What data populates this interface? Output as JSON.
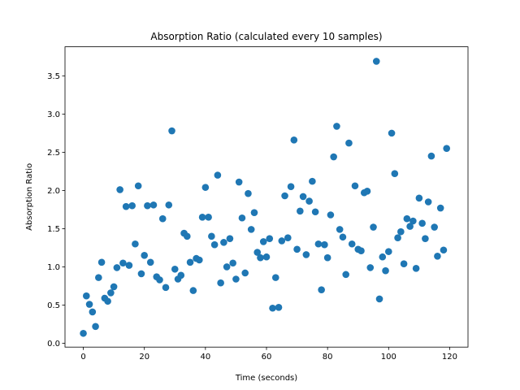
{
  "chart_data": {
    "type": "scatter",
    "title": "Absorption Ratio (calculated every 10 samples)",
    "xlabel": "Time (seconds)",
    "ylabel": "Absorption Ratio",
    "xlim": [
      -6,
      126
    ],
    "ylim": [
      -0.05,
      3.88
    ],
    "xticks": [
      0,
      20,
      40,
      60,
      80,
      100,
      120
    ],
    "yticks": [
      0.0,
      0.5,
      1.0,
      1.5,
      2.0,
      2.5,
      3.0,
      3.5
    ],
    "ytick_labels": [
      "0.0",
      "0.5",
      "1.0",
      "1.5",
      "2.0",
      "2.5",
      "3.0",
      "3.5"
    ],
    "xtick_labels": [
      "0",
      "20",
      "40",
      "60",
      "80",
      "100",
      "120"
    ],
    "grid": false,
    "marker_color": "#1f77b4",
    "x": [
      0,
      1,
      2,
      3,
      4,
      5,
      6,
      7,
      8,
      9,
      10,
      11,
      12,
      13,
      14,
      15,
      16,
      17,
      18,
      19,
      20,
      21,
      22,
      23,
      24,
      25,
      26,
      27,
      28,
      29,
      30,
      31,
      32,
      33,
      34,
      35,
      36,
      37,
      38,
      39,
      40,
      41,
      42,
      43,
      44,
      45,
      46,
      47,
      48,
      49,
      50,
      51,
      52,
      53,
      54,
      55,
      56,
      57,
      58,
      59,
      60,
      61,
      62,
      63,
      64,
      65,
      66,
      67,
      68,
      69,
      70,
      71,
      72,
      73,
      74,
      75,
      76,
      77,
      78,
      79,
      80,
      81,
      82,
      83,
      84,
      85,
      86,
      87,
      88,
      89,
      90,
      91,
      92,
      93,
      94,
      95,
      96,
      97,
      98,
      99,
      100,
      101,
      102,
      103,
      104,
      105,
      106,
      107,
      108,
      109,
      110,
      111,
      112,
      113,
      114,
      115,
      116,
      117,
      118,
      119
    ],
    "y": [
      0.13,
      0.62,
      0.51,
      0.41,
      0.22,
      0.86,
      1.06,
      0.59,
      0.55,
      0.66,
      0.74,
      0.99,
      2.01,
      1.05,
      1.79,
      1.02,
      1.8,
      1.3,
      2.06,
      0.91,
      1.15,
      1.8,
      1.06,
      1.81,
      0.87,
      0.83,
      1.63,
      0.73,
      1.81,
      2.78,
      0.97,
      0.84,
      0.89,
      1.44,
      1.4,
      1.06,
      0.69,
      1.11,
      1.09,
      1.65,
      2.04,
      1.65,
      1.4,
      1.29,
      2.2,
      0.79,
      1.32,
      1.0,
      1.37,
      1.05,
      0.84,
      2.11,
      1.64,
      0.92,
      1.96,
      1.49,
      1.71,
      1.19,
      1.12,
      1.33,
      1.13,
      1.37,
      0.46,
      0.86,
      0.47,
      1.34,
      1.93,
      1.38,
      2.05,
      2.66,
      1.23,
      1.73,
      1.92,
      1.16,
      1.86,
      2.12,
      1.72,
      1.3,
      0.7,
      1.29,
      1.12,
      1.68,
      2.44,
      2.84,
      1.49,
      1.39,
      0.9,
      2.62,
      1.3,
      2.06,
      1.23,
      1.21,
      1.97,
      1.99,
      0.99,
      1.52,
      3.69,
      0.58,
      1.13,
      0.95,
      1.2,
      2.75,
      2.22,
      1.38,
      1.46,
      1.04,
      1.63,
      1.53,
      1.6,
      0.98,
      1.9,
      1.57,
      1.37,
      1.85,
      2.45,
      1.52,
      1.14,
      1.77,
      1.22,
      2.55
    ]
  }
}
